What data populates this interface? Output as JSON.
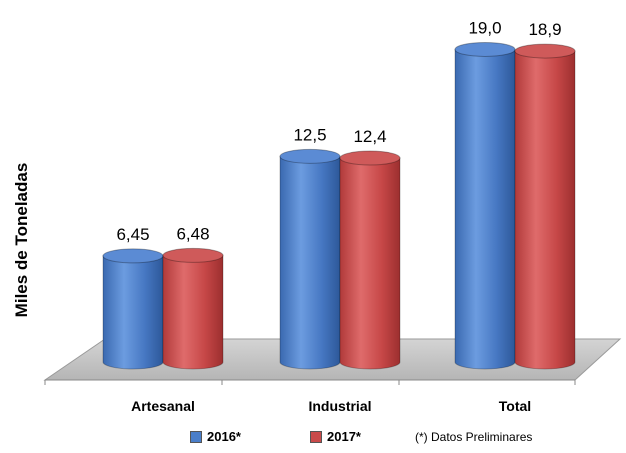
{
  "chart_data": {
    "type": "bar",
    "categories": [
      "Artesanal",
      "Industrial",
      "Total"
    ],
    "series": [
      {
        "name": "2016*",
        "values": [
          6.45,
          12.5,
          19.0
        ],
        "labels": [
          "6,45",
          "12,5",
          "19,0"
        ],
        "color": "#4a7ec9"
      },
      {
        "name": "2017*",
        "values": [
          6.48,
          12.4,
          18.9
        ],
        "labels": [
          "6,48",
          "12,4",
          "18,9"
        ],
        "color": "#c94a4a"
      }
    ],
    "ylabel": "Miles de Toneladas",
    "note": "(*) Datos Preliminares",
    "legend_position": "bottom",
    "grid": false
  }
}
